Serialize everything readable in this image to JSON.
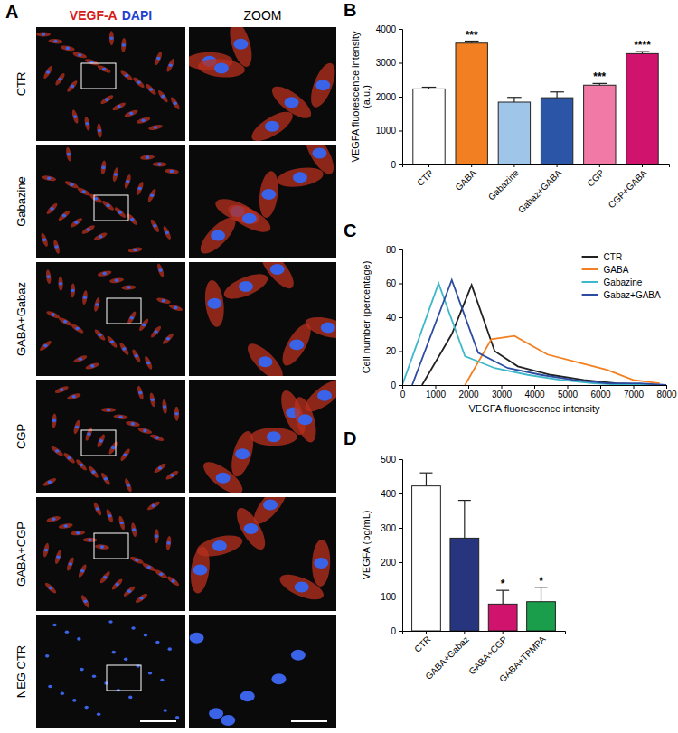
{
  "figure": {
    "panel_labels": [
      "A",
      "B",
      "C",
      "D"
    ],
    "panel_a": {
      "stain_labels": [
        "VEGF-A",
        "DAPI"
      ],
      "zoom_label": "ZOOM",
      "rows": [
        "CTR",
        "Gabazine",
        "GABA+Gabaz",
        "CGP",
        "GABA+CGP",
        "NEG CTR"
      ]
    }
  },
  "chart_data": [
    {
      "type": "bar",
      "ylabel": "VEGFA fluorescence intensity (a.u.)",
      "categories": [
        "CTR",
        "GABA",
        "Gabazine",
        "Gabaz+GABA",
        "CGP",
        "CGP+GABA"
      ],
      "values": [
        2230,
        3580,
        1840,
        1970,
        2340,
        3270
      ],
      "errors": [
        50,
        60,
        140,
        170,
        50,
        60
      ],
      "colors": [
        "#ffffff",
        "#f28022",
        "#9fc5e8",
        "#2b55a6",
        "#f07aa5",
        "#d0146e"
      ],
      "ylim": [
        0,
        4000
      ],
      "yticks": [
        0,
        1000,
        2000,
        3000,
        4000
      ],
      "annotations": [
        {
          "x": "GABA",
          "text": "***"
        },
        {
          "x": "CGP",
          "text": "***"
        },
        {
          "x": "CGP+GABA",
          "text": "****"
        }
      ]
    },
    {
      "type": "line",
      "xlabel": "VEGFA fluorescence intensity",
      "ylabel": "Cell number (percentage)",
      "series": [
        {
          "name": "CTR",
          "color": "#222222",
          "x": [
            600,
            1500,
            2100,
            2800,
            3500,
            4500,
            5500,
            6500,
            7500
          ],
          "values": [
            0,
            30,
            59,
            20,
            11,
            6,
            3,
            1,
            0
          ]
        },
        {
          "name": "GABA",
          "color": "#f28022",
          "x": [
            1900,
            2700,
            3400,
            4400,
            5400,
            6200,
            7000,
            7800
          ],
          "values": [
            0,
            27,
            29,
            18,
            13,
            9,
            3,
            1
          ]
        },
        {
          "name": "Gabazine",
          "color": "#3fb8c9",
          "x": [
            0,
            1100,
            1900,
            2800,
            3800,
            4800,
            5800,
            6800,
            7800
          ],
          "values": [
            0,
            60,
            17,
            10,
            6,
            3,
            1,
            0,
            0
          ]
        },
        {
          "name": "Gabaz+GABA",
          "color": "#2b4ca0",
          "x": [
            300,
            1500,
            2300,
            3200,
            4200,
            5200,
            6200,
            7200,
            8000
          ],
          "values": [
            0,
            62,
            19,
            10,
            6,
            3,
            1,
            1,
            0
          ]
        }
      ],
      "xlim": [
        0,
        8000
      ],
      "xticks": [
        0,
        1000,
        2000,
        3000,
        4000,
        5000,
        6000,
        7000,
        8000
      ],
      "ylim": [
        0,
        80
      ],
      "yticks": [
        0,
        20,
        40,
        60,
        80
      ],
      "legend": "upper right"
    },
    {
      "type": "bar",
      "ylabel": "VEGFA (pg/mL)",
      "categories": [
        "CTR",
        "GABA+Gabaz",
        "GABA+CGP",
        "GABA+TPMPA"
      ],
      "values": [
        422,
        270,
        78,
        85
      ],
      "errors": [
        38,
        110,
        40,
        42
      ],
      "colors": [
        "#ffffff",
        "#27357e",
        "#d0146e",
        "#1b9e4b"
      ],
      "ylim": [
        0,
        500
      ],
      "yticks": [
        0,
        100,
        200,
        300,
        400,
        500
      ],
      "annotations": [
        {
          "x": "GABA+CGP",
          "text": "*"
        },
        {
          "x": "GABA+TPMPA",
          "text": "*"
        }
      ]
    }
  ]
}
